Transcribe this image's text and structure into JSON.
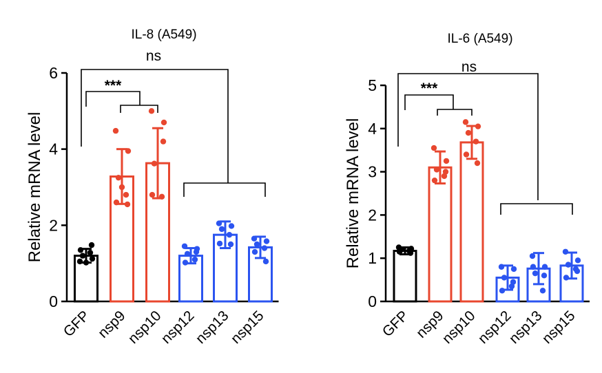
{
  "chart_data": [
    {
      "type": "bar",
      "title": "IL-8 (A549)",
      "xlabel": "",
      "ylabel": "Relative mRNA level",
      "ylim": [
        0,
        6
      ],
      "yticks": [
        "0",
        "2",
        "4",
        "6"
      ],
      "categories": [
        "GFP",
        "nsp9",
        "nsp10",
        "nsp12",
        "nsp13",
        "nsp15"
      ],
      "values": [
        1.2,
        3.28,
        3.63,
        1.2,
        1.75,
        1.42
      ],
      "error": [
        0.18,
        0.72,
        0.92,
        0.2,
        0.35,
        0.28
      ],
      "points": [
        [
          1.05,
          1.12,
          1.2,
          1.28,
          1.35,
          1.48,
          1.02
        ],
        [
          4.48,
          3.95,
          3.25,
          2.8,
          2.6,
          2.55,
          3.0
        ],
        [
          5.0,
          4.7,
          3.62,
          2.75,
          2.8,
          4.2
        ],
        [
          1.45,
          1.38,
          1.25,
          1.1,
          1.02,
          1.3
        ],
        [
          2.05,
          1.98,
          1.9,
          1.75,
          1.52,
          1.5
        ],
        [
          1.65,
          1.58,
          1.5,
          1.4,
          1.3,
          1.05
        ]
      ],
      "bar_colors": [
        "#000000",
        "#e8472f",
        "#e8472f",
        "#2b54f0",
        "#2b54f0",
        "#2b54f0"
      ],
      "significance": [
        "***",
        "ns"
      ]
    },
    {
      "type": "bar",
      "title": "IL-6 (A549)",
      "xlabel": "",
      "ylabel": "Relative mRNA level",
      "ylim": [
        0,
        5
      ],
      "yticks": [
        "0",
        "1",
        "2",
        "3",
        "4",
        "5"
      ],
      "categories": [
        "GFP",
        "nsp9",
        "nsp10",
        "nsp12",
        "nsp13",
        "nsp15"
      ],
      "values": [
        1.17,
        3.1,
        3.68,
        0.55,
        0.76,
        0.83
      ],
      "error": [
        0.08,
        0.37,
        0.38,
        0.28,
        0.36,
        0.3
      ],
      "points": [
        [
          1.25,
          1.22,
          1.2,
          1.17,
          1.15,
          1.12
        ],
        [
          3.55,
          3.25,
          3.05,
          2.9,
          2.8,
          3.0
        ],
        [
          4.15,
          4.05,
          3.9,
          3.7,
          3.4,
          3.2
        ],
        [
          0.8,
          0.75,
          0.55,
          0.35,
          0.25,
          0.45
        ],
        [
          1.05,
          0.8,
          0.65,
          0.25,
          0.8,
          0.6
        ],
        [
          1.15,
          0.95,
          0.85,
          0.75,
          0.55,
          0.7
        ]
      ],
      "bar_colors": [
        "#000000",
        "#e8472f",
        "#e8472f",
        "#2b54f0",
        "#2b54f0",
        "#2b54f0"
      ],
      "significance": [
        "***",
        "ns"
      ]
    }
  ]
}
